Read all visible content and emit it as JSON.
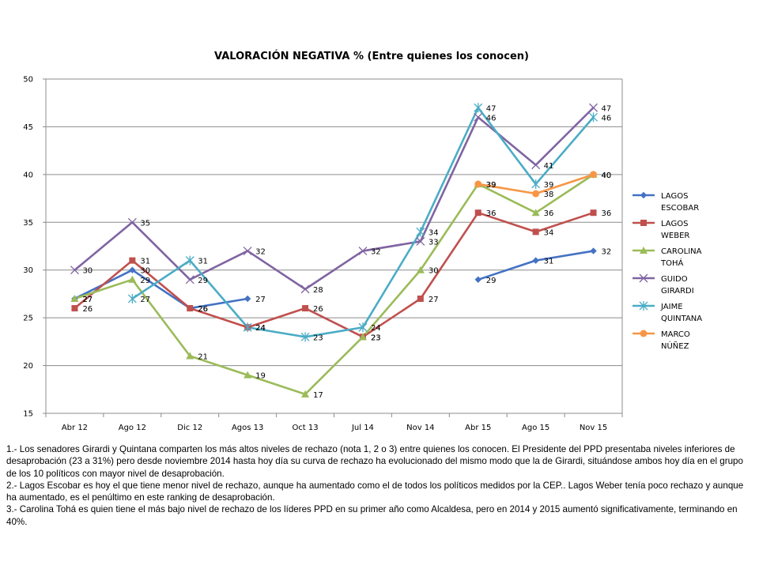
{
  "chart_data": {
    "type": "line",
    "title": "VALORACIÓN NEGATIVA % (Entre quienes los conocen)",
    "categories": [
      "Abr 12",
      "Ago 12",
      "Dic 12",
      "Agos 13",
      "Oct 13",
      "Jul 14",
      "Nov 14",
      "Abr 15",
      "Ago 15",
      "Nov 15"
    ],
    "ylim": [
      15,
      50
    ],
    "yticks": [
      15,
      20,
      25,
      30,
      35,
      40,
      45,
      50
    ],
    "grid": "horizontal",
    "legend_position": "right",
    "series": [
      {
        "name": "LAGOS ESCOBAR",
        "legend_lines": [
          "LAGOS",
          "ESCOBAR"
        ],
        "color": "#4472C4",
        "marker": "diamond",
        "values": [
          27,
          30,
          26,
          27,
          null,
          null,
          null,
          29,
          31,
          32
        ]
      },
      {
        "name": "LAGOS WEBER",
        "legend_lines": [
          "LAGOS",
          "WEBER"
        ],
        "color": "#C0504D",
        "marker": "square",
        "values": [
          26,
          31,
          26,
          24,
          26,
          23,
          27,
          36,
          34,
          36
        ]
      },
      {
        "name": "CAROLINA TOHÁ",
        "legend_lines": [
          "CAROLINA",
          "TOHÁ"
        ],
        "color": "#9BBB59",
        "marker": "triangle",
        "values": [
          27,
          29,
          21,
          19,
          17,
          23,
          30,
          39,
          36,
          40
        ]
      },
      {
        "name": "GUIDO GIRARDI",
        "legend_lines": [
          "GUIDO",
          "GIRARDI"
        ],
        "color": "#8064A2",
        "marker": "x",
        "values": [
          30,
          35,
          29,
          32,
          28,
          32,
          33,
          46,
          41,
          47
        ]
      },
      {
        "name": "JAIME QUINTANA",
        "legend_lines": [
          "JAIME",
          "QUINTANA"
        ],
        "color": "#4BACC6",
        "marker": "star",
        "values": [
          null,
          27,
          31,
          24,
          23,
          24,
          34,
          47,
          39,
          46
        ]
      },
      {
        "name": "MARCO NÚÑEZ",
        "legend_lines": [
          "MARCO",
          "NÚÑEZ"
        ],
        "color": "#F79646",
        "marker": "circle",
        "values": [
          null,
          null,
          null,
          null,
          null,
          null,
          null,
          39,
          38,
          40
        ]
      }
    ]
  },
  "notes": [
    "1.- Los senadores Girardi y Quintana comparten los más altos niveles de rechazo (nota 1, 2 o 3)  entre quienes los conocen. El Presidente del PPD presentaba niveles inferiores de desaprobación (23 a 31%) pero desde noviembre 2014 hasta hoy día su curva de rechazo ha evolucionado del mismo modo que la de Girardi, situándose ambos hoy día en el grupo de los 10 políticos con mayor nivel de desaprobación.",
    "2.- Lagos Escobar es hoy el que tiene menor nivel de rechazo,  aunque ha aumentado como el de todos los políticos medidos por la CEP.. Lagos Weber tenía poco rechazo y aunque ha aumentado, es el penúltimo en este ranking de desaprobación.",
    "3.- Carolina Tohá es quien tiene el más bajo nivel de rechazo de los líderes PPD en  su primer año como Alcaldesa, pero en 2014 y 2015 aumentó significativamente, terminando en 40%."
  ]
}
